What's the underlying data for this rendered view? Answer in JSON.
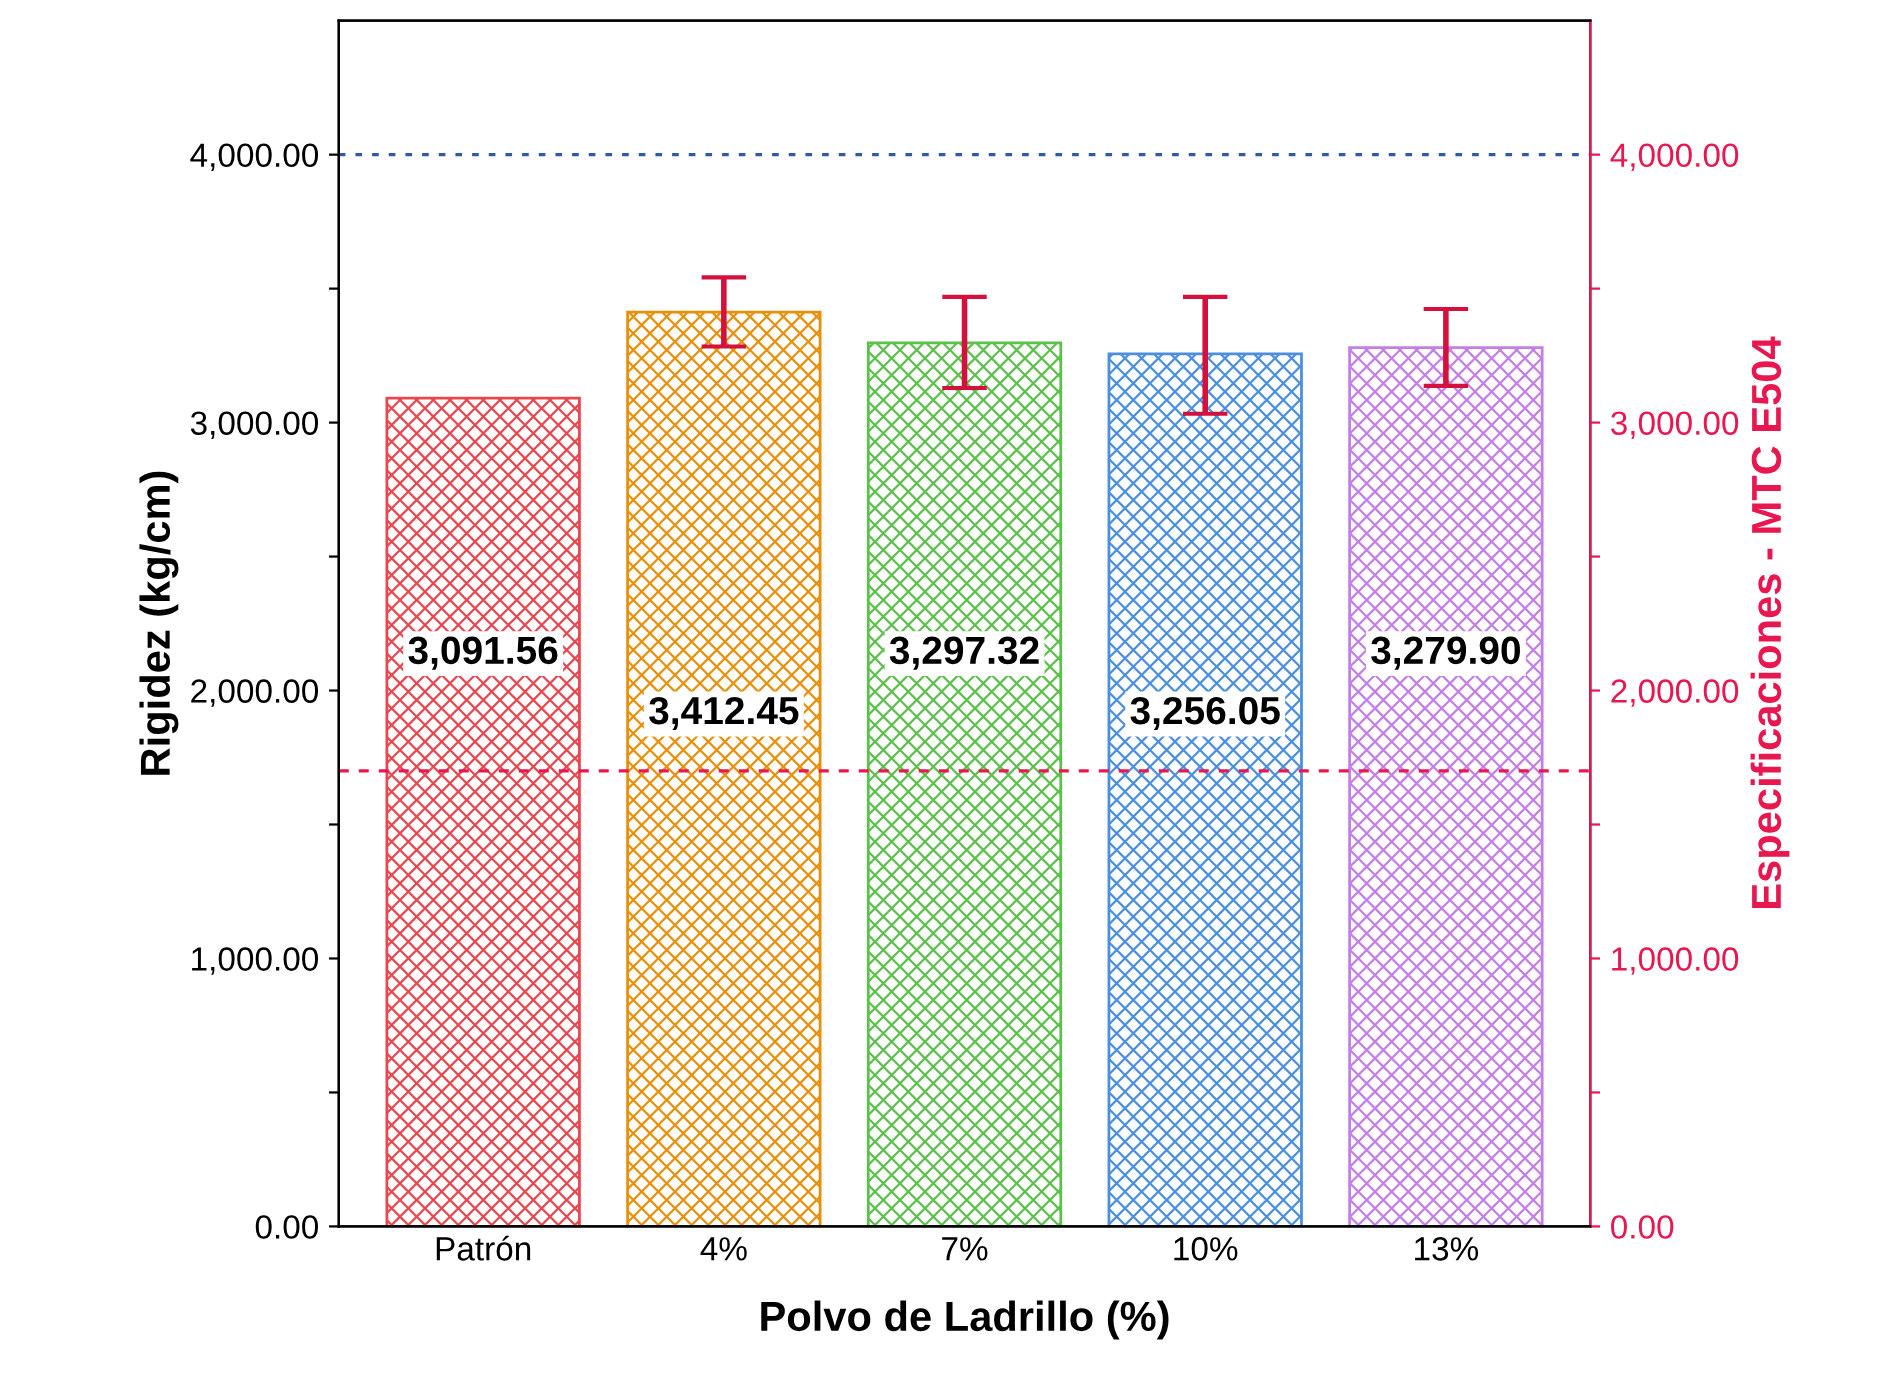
{
  "chart_data": {
    "type": "bar",
    "xlabel": "Polvo de Ladrillo (%)",
    "ylabel": "Rigidez (kg/cm)",
    "y2label": "Especificaciones - MTC E504",
    "categories": [
      "Patrón",
      "4%",
      "7%",
      "10%",
      "13%"
    ],
    "series": [
      {
        "colors": [
          "#e8474f",
          "#e8900a",
          "#5cc04c",
          "#4a8fe0",
          "#c47ee8"
        ],
        "values": [
          3091.56,
          3412.45,
          3297.32,
          3256.05,
          3279.9
        ],
        "errors": [
          null,
          [
            3284,
            3542
          ],
          [
            3129,
            3469
          ],
          [
            3033,
            3469
          ],
          [
            3137,
            3424
          ]
        ]
      }
    ],
    "value_labels": [
      "3,091.56",
      "3,412.45",
      "3,297.32",
      "3,256.05",
      "3,279.90"
    ],
    "ylim": [
      0,
      4500
    ],
    "y2lim": [
      0,
      4500
    ],
    "yticks": [
      {
        "value": 0,
        "label": "0.00"
      },
      {
        "value": 500,
        "label": null
      },
      {
        "value": 1000,
        "label": "1,000.00"
      },
      {
        "value": 1500,
        "label": null
      },
      {
        "value": 2000,
        "label": "2,000.00"
      },
      {
        "value": 2500,
        "label": null
      },
      {
        "value": 3000,
        "label": "3,000.00"
      },
      {
        "value": 3500,
        "label": null
      },
      {
        "value": 4000,
        "label": "4,000.00"
      }
    ],
    "y2ticks": [
      {
        "value": 0,
        "label": "0.00"
      },
      {
        "value": 500,
        "label": null
      },
      {
        "value": 1000,
        "label": "1,000.00"
      },
      {
        "value": 1500,
        "label": null
      },
      {
        "value": 2000,
        "label": "2,000.00"
      },
      {
        "value": 2500,
        "label": null
      },
      {
        "value": 3000,
        "label": "3,000.00"
      },
      {
        "value": 3500,
        "label": null
      },
      {
        "value": 4000,
        "label": "4,000.00"
      }
    ],
    "ref_lines": [
      {
        "axis": "y",
        "value": 4000,
        "color": "#2e5aa8",
        "line_style": "dotted"
      },
      {
        "axis": "y2",
        "value": 1700,
        "color": "#e8174f",
        "line_style": "dashed"
      }
    ],
    "grid": false,
    "legend": false
  }
}
